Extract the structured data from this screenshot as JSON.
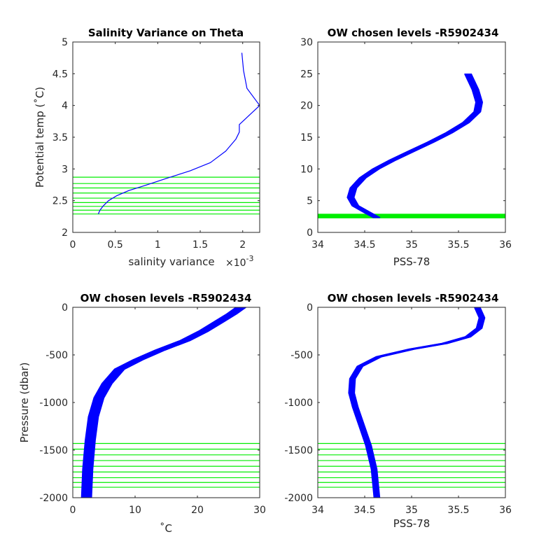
{
  "chart_data": [
    {
      "id": "p1",
      "type": "line",
      "title": "Salinity Variance on Theta",
      "xlabel": "salinity variance",
      "x_exponent_label": "×10",
      "x_exponent_power": "-3",
      "ylabel": "Potential temp (˚C)",
      "xlim": [
        0,
        2.2
      ],
      "ylim": [
        2,
        5
      ],
      "xticks": [
        0,
        0.5,
        1,
        1.5,
        2
      ],
      "xtick_labels": [
        "0",
        "0.5",
        "1",
        "1.5",
        "2"
      ],
      "yticks": [
        2,
        2.5,
        3,
        3.5,
        4,
        4.5,
        5
      ],
      "ytick_labels": [
        "2",
        "2.5",
        "3",
        "3.5",
        "4",
        "4.5",
        "5"
      ],
      "grid": false,
      "series": [
        {
          "color": "#0000ff",
          "x": [
            0.3,
            0.32,
            0.36,
            0.42,
            0.52,
            0.66,
            0.85,
            1.1,
            1.38,
            1.62,
            1.8,
            1.92,
            1.96,
            1.96,
            2.2,
            2.05,
            2.01,
            1.99
          ],
          "y": [
            2.29,
            2.35,
            2.42,
            2.5,
            2.58,
            2.66,
            2.74,
            2.85,
            2.97,
            3.1,
            3.28,
            3.47,
            3.58,
            3.7,
            4.0,
            4.27,
            4.55,
            4.83
          ]
        }
      ],
      "hlines": {
        "color": "#00ee00",
        "values": [
          2.29,
          2.35,
          2.41,
          2.47,
          2.54,
          2.62,
          2.7,
          2.77,
          2.87
        ]
      }
    },
    {
      "id": "p2",
      "type": "line",
      "title": "OW chosen levels -R5902434",
      "xlabel": "PSS-78",
      "ylabel": "",
      "xlim": [
        34,
        36
      ],
      "ylim": [
        0,
        30
      ],
      "xticks": [
        34,
        34.5,
        35,
        35.5,
        36
      ],
      "xtick_labels": [
        "34",
        "34.5",
        "35",
        "35.5",
        "36"
      ],
      "yticks": [
        0,
        5,
        10,
        15,
        20,
        25,
        30
      ],
      "ytick_labels": [
        "0",
        "5",
        "10",
        "15",
        "20",
        "25",
        "30"
      ],
      "grid": false,
      "series": [
        {
          "color": "#0000ff",
          "x": [
            34.63,
            34.52,
            34.4,
            34.35,
            34.38,
            34.48,
            34.62,
            34.8,
            35.0,
            35.2,
            35.4,
            35.58,
            35.7,
            35.72,
            35.68,
            35.6
          ],
          "y": [
            2.3,
            3.2,
            4.2,
            5.5,
            7.0,
            8.6,
            10.0,
            11.4,
            12.8,
            14.2,
            15.7,
            17.3,
            19.0,
            20.5,
            22.5,
            25.0
          ]
        }
      ],
      "band": {
        "spread_x": 0.07,
        "count": 14,
        "color": "#0000ff"
      },
      "hlines": {
        "color": "#00ee00",
        "values": [
          2.29,
          2.35,
          2.41,
          2.47,
          2.54,
          2.62,
          2.7,
          2.77,
          2.87
        ]
      }
    },
    {
      "id": "p3",
      "type": "line",
      "title": "OW chosen levels -R5902434",
      "xlabel": "˚C",
      "ylabel": "Pressure (dbar)",
      "xlim": [
        0,
        30
      ],
      "ylim": [
        -2000,
        0
      ],
      "xticks": [
        0,
        10,
        20,
        30
      ],
      "xtick_labels": [
        "0",
        "10",
        "20",
        "30"
      ],
      "yticks": [
        -2000,
        -1500,
        -1000,
        -500,
        0
      ],
      "ytick_labels": [
        "-2000",
        "-1500",
        "-1000",
        "-500",
        "0"
      ],
      "grid": false,
      "series": [
        {
          "color": "#0000ff",
          "x": [
            2.2,
            2.4,
            2.8,
            3.3,
            4.2,
            5.5,
            7.5,
            10.5,
            14.0,
            18.0,
            21.0,
            23.5,
            25.5,
            27.0
          ],
          "y": [
            -2000,
            -1700,
            -1400,
            -1150,
            -950,
            -800,
            -650,
            -550,
            -450,
            -350,
            -250,
            -150,
            -70,
            0
          ]
        }
      ],
      "band": {
        "spread_x": 1.6,
        "count": 14,
        "color": "#0000ff"
      },
      "hlines": {
        "color": "#00ee00",
        "values": [
          -1430,
          -1490,
          -1550,
          -1610,
          -1670,
          -1730,
          -1790,
          -1840,
          -1890
        ]
      }
    },
    {
      "id": "p4",
      "type": "line",
      "title": "OW chosen levels -R5902434",
      "xlabel": "PSS-78",
      "ylabel": "",
      "xlim": [
        34,
        36
      ],
      "ylim": [
        -2000,
        0
      ],
      "xticks": [
        34,
        34.5,
        35,
        35.5,
        36
      ],
      "xtick_labels": [
        "34",
        "34.5",
        "35",
        "35.5",
        "36"
      ],
      "yticks": [
        -2000,
        -1500,
        -1000,
        -500,
        0
      ],
      "ytick_labels": [
        "-2000",
        "-1500",
        "-1000",
        "-500",
        "0"
      ],
      "grid": false,
      "series": [
        {
          "color": "#0000ff",
          "x": [
            34.63,
            34.6,
            34.54,
            34.47,
            34.4,
            34.36,
            34.37,
            34.45,
            34.65,
            35.0,
            35.35,
            35.6,
            35.72,
            35.75,
            35.7
          ],
          "y": [
            -2000,
            -1700,
            -1450,
            -1250,
            -1050,
            -900,
            -750,
            -620,
            -520,
            -440,
            -380,
            -310,
            -220,
            -110,
            0
          ]
        }
      ],
      "band": {
        "spread_x": 0.06,
        "count": 14,
        "color": "#0000ff"
      },
      "hlines": {
        "color": "#00ee00",
        "values": [
          -1430,
          -1490,
          -1550,
          -1610,
          -1670,
          -1730,
          -1790,
          -1840,
          -1890
        ]
      }
    }
  ]
}
